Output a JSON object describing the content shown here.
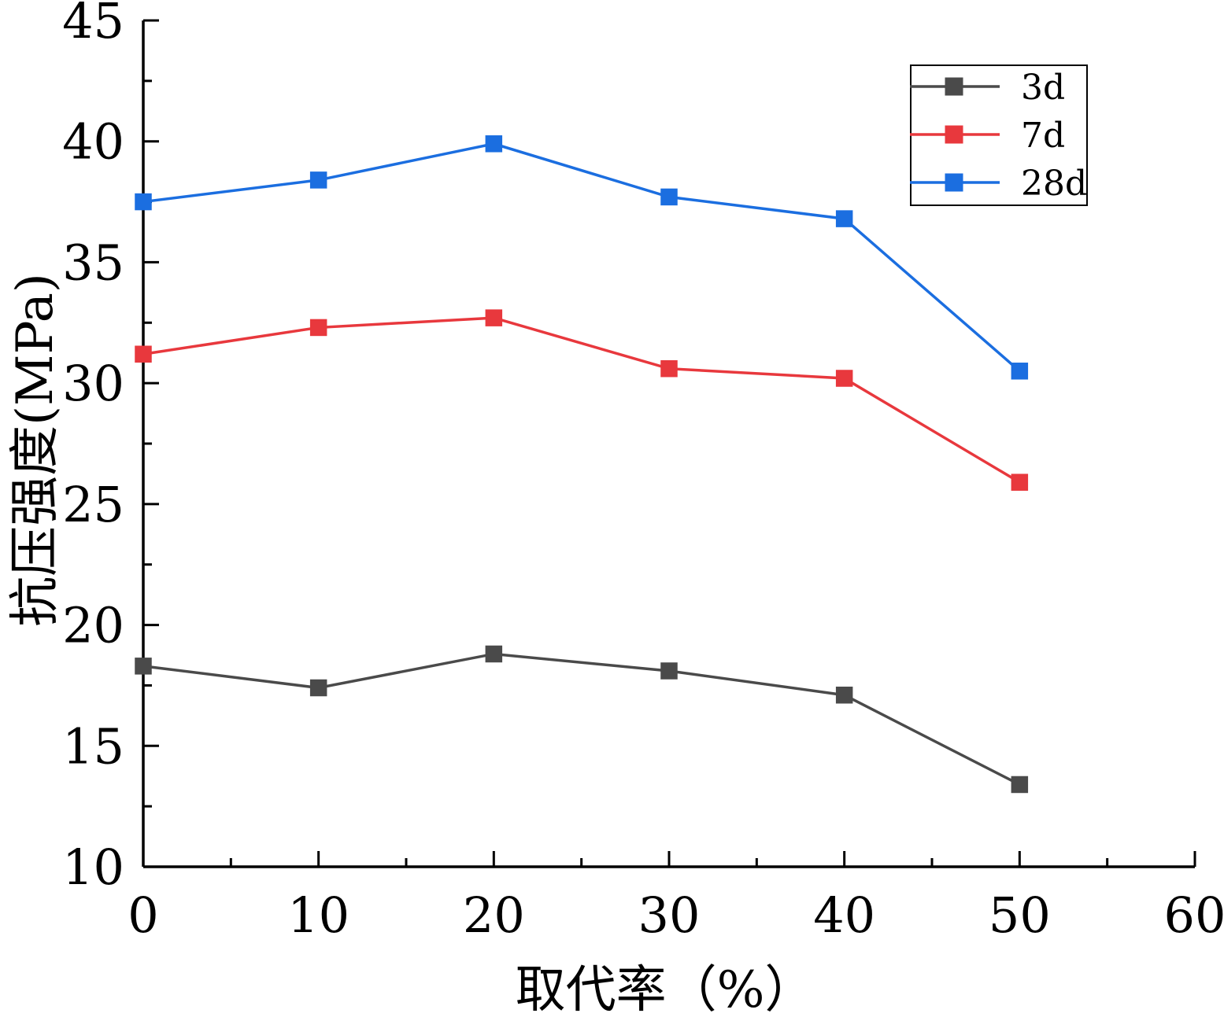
{
  "chart_data": {
    "type": "line",
    "title": "",
    "xlabel": "取代率（%）",
    "ylabel": "抗压强度(MPa)",
    "x": [
      0,
      10,
      20,
      30,
      40,
      50
    ],
    "xlim": [
      0,
      60
    ],
    "ylim": [
      10,
      45
    ],
    "xticks": [
      "0",
      "10",
      "20",
      "30",
      "40",
      "50",
      "60"
    ],
    "yticks": [
      "10",
      "15",
      "20",
      "25",
      "30",
      "35",
      "40",
      "45"
    ],
    "grid": false,
    "legend_position": "top-right",
    "series": [
      {
        "name": "3d",
        "color": "#4a4a4a",
        "marker": "square",
        "values": [
          18.3,
          17.4,
          18.8,
          18.1,
          17.1,
          13.4
        ]
      },
      {
        "name": "7d",
        "color": "#e8383d",
        "marker": "square",
        "values": [
          31.2,
          32.3,
          32.7,
          30.6,
          30.2,
          25.9
        ]
      },
      {
        "name": "28d",
        "color": "#1b6ee0",
        "marker": "square",
        "values": [
          37.5,
          38.4,
          39.9,
          37.7,
          36.8,
          30.5
        ]
      }
    ]
  }
}
